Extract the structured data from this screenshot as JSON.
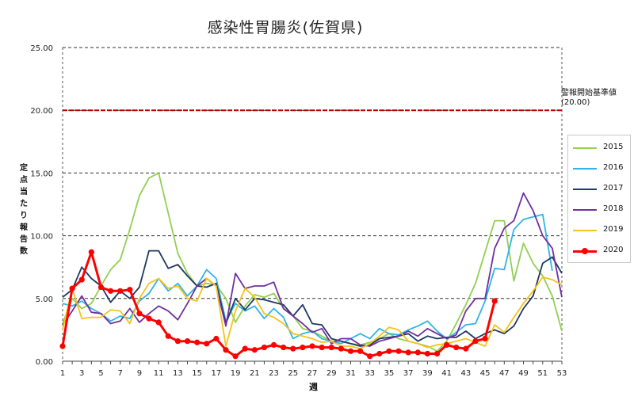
{
  "title": "感染性胃腸炎(佐賀県)",
  "ylabel": "定点当たり報告数",
  "xlabel": "週",
  "threshold_label": "警報開始基準値",
  "threshold_value_label": "(20.00)",
  "chart_data": {
    "type": "line",
    "title": "感染性胃腸炎(佐賀県)",
    "xlabel": "週",
    "ylabel": "定点当たり報告数",
    "xlim": [
      1,
      53
    ],
    "ylim": [
      0,
      25
    ],
    "x_ticks": [
      "1",
      "3",
      "5",
      "7",
      "9",
      "11",
      "13",
      "15",
      "17",
      "19",
      "21",
      "23",
      "25",
      "27",
      "29",
      "31",
      "33",
      "35",
      "37",
      "39",
      "41",
      "43",
      "45",
      "47",
      "49",
      "51",
      "53"
    ],
    "y_ticks": [
      "0.00",
      "5.00",
      "10.00",
      "15.00",
      "20.00",
      "25.00"
    ],
    "y_tick_values": [
      0,
      5,
      10,
      15,
      20,
      25
    ],
    "threshold": 20.0,
    "legend_position": "right",
    "grid": "horizontal-dashed",
    "series": [
      {
        "name": "2015",
        "color": "#92d050",
        "marker": false,
        "values": [
          3.0,
          5.0,
          4.2,
          4.6,
          6.0,
          7.3,
          8.1,
          10.5,
          13.2,
          14.6,
          15.0,
          11.8,
          8.6,
          7.0,
          6.0,
          6.2,
          6.1,
          5.0,
          3.1,
          4.4,
          5.3,
          5.1,
          5.4,
          4.2,
          3.6,
          2.6,
          2.4,
          2.0,
          1.6,
          1.6,
          1.4,
          1.3,
          1.5,
          1.8,
          2.2,
          1.8,
          1.6,
          1.4,
          1.2,
          0.8,
          1.6,
          3.0,
          4.5,
          6.2,
          8.7,
          11.2,
          11.2,
          6.4,
          9.4,
          7.8,
          6.8,
          5.2,
          2.4
        ]
      },
      {
        "name": "2016",
        "color": "#31b4e6",
        "marker": false,
        "values": [
          4.6,
          4.4,
          4.8,
          4.2,
          3.8,
          3.2,
          3.6,
          3.4,
          4.8,
          5.4,
          6.6,
          5.6,
          6.2,
          5.2,
          6.0,
          7.3,
          6.6,
          3.2,
          4.6,
          4.0,
          4.4,
          3.4,
          4.2,
          3.5,
          1.8,
          2.2,
          2.4,
          1.8,
          1.6,
          1.4,
          1.8,
          2.2,
          1.8,
          2.6,
          2.2,
          2.1,
          2.5,
          2.8,
          3.2,
          2.4,
          1.8,
          2.3,
          2.9,
          3.0,
          4.8,
          7.4,
          7.3,
          10.5,
          11.3,
          11.5,
          11.7,
          7.2
        ]
      },
      {
        "name": "2017",
        "color": "#1f3864",
        "marker": false,
        "values": [
          5.1,
          5.7,
          7.5,
          6.6,
          6.0,
          4.7,
          5.6,
          5.0,
          5.9,
          8.8,
          8.8,
          7.4,
          7.7,
          6.8,
          6.0,
          5.9,
          6.2,
          3.0,
          5.0,
          4.1,
          5.0,
          4.9,
          4.7,
          4.5,
          3.6,
          4.5,
          3.0,
          2.9,
          1.8,
          1.6,
          1.4,
          1.2,
          1.3,
          1.8,
          1.9,
          2.0,
          2.2,
          1.6,
          2.0,
          1.8,
          1.9,
          1.9,
          2.4,
          1.8,
          2.2,
          2.5,
          2.2,
          2.8,
          4.2,
          5.2,
          7.8,
          8.3,
          7.0
        ]
      },
      {
        "name": "2018",
        "color": "#7030a0",
        "marker": false,
        "values": [
          2.9,
          4.0,
          5.2,
          3.9,
          3.8,
          3.0,
          3.2,
          4.2,
          3.1,
          3.8,
          4.4,
          4.0,
          3.3,
          4.6,
          6.0,
          6.6,
          6.0,
          2.8,
          7.0,
          5.8,
          6.0,
          6.0,
          6.3,
          4.2,
          3.6,
          3.0,
          2.3,
          2.6,
          1.4,
          1.8,
          1.8,
          1.3,
          1.2,
          1.6,
          1.8,
          2.0,
          2.4,
          2.0,
          2.6,
          2.2,
          1.8,
          2.1,
          4.0,
          5.0,
          5.0,
          9.0,
          10.6,
          11.2,
          13.4,
          12.0,
          10.0,
          9.0,
          5.1
        ]
      },
      {
        "name": "2019",
        "color": "#f4c31a",
        "marker": false,
        "values": [
          2.5,
          5.8,
          3.4,
          3.5,
          3.5,
          4.1,
          4.0,
          3.0,
          5.0,
          6.2,
          6.6,
          5.8,
          6.0,
          5.0,
          4.8,
          6.6,
          6.0,
          1.2,
          4.0,
          5.8,
          5.1,
          3.8,
          3.5,
          3.0,
          2.2,
          2.0,
          1.8,
          1.5,
          1.6,
          1.2,
          1.2,
          1.0,
          1.4,
          2.0,
          2.7,
          2.5,
          1.6,
          1.4,
          1.1,
          1.3,
          1.4,
          1.6,
          1.8,
          1.5,
          1.2,
          2.9,
          2.3,
          3.5,
          4.6,
          5.6,
          6.7,
          6.5,
          6.1
        ]
      },
      {
        "name": "2020",
        "color": "#ff0000",
        "marker": true,
        "values": [
          1.2,
          5.8,
          6.5,
          8.7,
          5.9,
          5.6,
          5.6,
          5.7,
          3.8,
          3.4,
          3.1,
          2.0,
          1.6,
          1.6,
          1.5,
          1.4,
          1.8,
          0.9,
          0.4,
          1.0,
          0.9,
          1.1,
          1.3,
          1.1,
          1.0,
          1.1,
          1.2,
          1.1,
          1.1,
          1.0,
          0.8,
          0.8,
          0.4,
          0.6,
          0.8,
          0.8,
          0.7,
          0.7,
          0.6,
          0.6,
          1.3,
          1.1,
          1.0,
          1.6,
          1.8,
          4.8
        ]
      }
    ]
  }
}
